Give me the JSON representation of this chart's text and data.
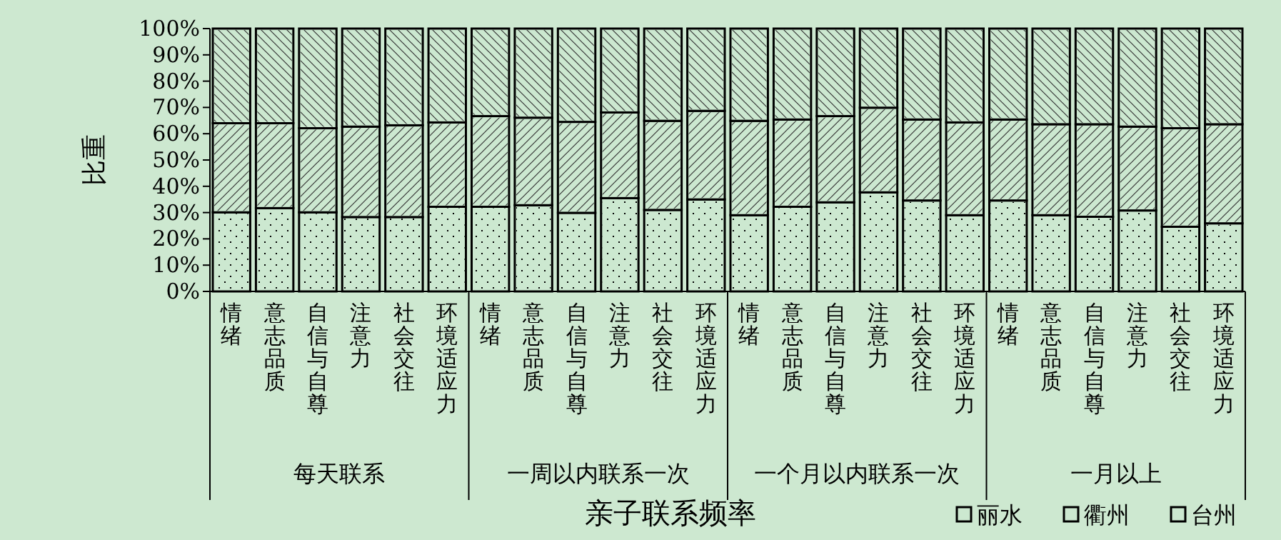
{
  "chart_data": {
    "type": "bar",
    "stacked": true,
    "xlabel": "亲子联系频率",
    "ylabel": "比重",
    "categories": [
      "情绪",
      "意志品质",
      "自信与自尊",
      "注意力",
      "社会交往",
      "环境适应力",
      "情绪",
      "意志品质",
      "自信与自尊",
      "注意力",
      "社会交往",
      "环境适应力",
      "情绪",
      "意志品质",
      "自信与自尊",
      "注意力",
      "社会交往",
      "环境适应力",
      "情绪",
      "意志品质",
      "自信与自尊",
      "注意力",
      "社会交往",
      "环境适应力"
    ],
    "annotations": [
      "每天联系",
      "一周以内联系一次",
      "一个月以内联系一次",
      "一月以上"
    ],
    "series": [
      {
        "name": "丽水",
        "color": "#cce8d0",
        "values": [
          30.1,
          31.7,
          30.1,
          28.3,
          28.3,
          32.2,
          32.2,
          32.8,
          29.9,
          35.5,
          31.0,
          35.0,
          29.0,
          32.2,
          33.9,
          37.7,
          34.6,
          29.0,
          34.6,
          29.0,
          28.4,
          30.8,
          24.6,
          25.9
        ]
      },
      {
        "name": "衢州",
        "color": "#cce8d0",
        "values": [
          33.9,
          32.3,
          32.0,
          34.4,
          34.9,
          32.1,
          34.5,
          33.3,
          34.6,
          32.6,
          33.9,
          33.7,
          35.9,
          33.2,
          32.8,
          32.2,
          30.8,
          35.3,
          30.8,
          34.6,
          35.2,
          31.9,
          37.5,
          37.7
        ]
      },
      {
        "name": "台州",
        "color": "#cce8d0",
        "values": [
          36.0,
          36.0,
          37.9,
          37.3,
          36.8,
          35.7,
          33.3,
          33.9,
          35.5,
          31.9,
          35.1,
          31.3,
          35.1,
          34.6,
          33.3,
          30.1,
          34.6,
          35.7,
          34.6,
          36.4,
          36.4,
          37.3,
          37.9,
          36.4
        ]
      }
    ],
    "ylim": [
      0,
      100
    ],
    "yticks": [
      {
        "value": 0,
        "label": "0%"
      },
      {
        "value": 10,
        "label": "10%"
      },
      {
        "value": 20,
        "label": "20%"
      },
      {
        "value": 30,
        "label": "30%"
      },
      {
        "value": 40,
        "label": "40%"
      },
      {
        "value": 50,
        "label": "50%"
      },
      {
        "value": 60,
        "label": "60%"
      },
      {
        "value": 70,
        "label": "70%"
      },
      {
        "value": 80,
        "label": "80%"
      },
      {
        "value": 90,
        "label": "90%"
      },
      {
        "value": 100,
        "label": "100%"
      }
    ],
    "grid": false,
    "legend": "bottom right"
  }
}
